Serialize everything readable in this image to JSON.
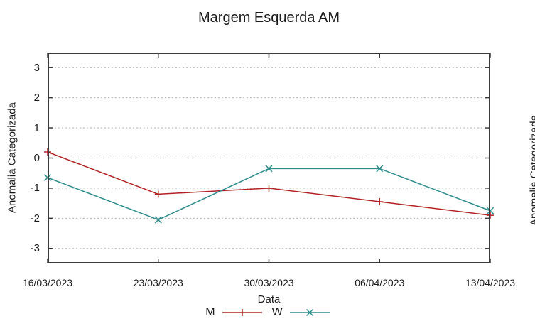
{
  "chart_data": {
    "type": "line",
    "title": "Margem Esquerda AM",
    "xlabel": "Data",
    "ylabel": "Anomalia Categorizada",
    "categories": [
      "16/03/2023",
      "23/03/2023",
      "30/03/2023",
      "06/04/2023",
      "13/04/2023"
    ],
    "series": [
      {
        "name": "M",
        "marker": "plus",
        "color": "#b22222",
        "values": [
          0.2,
          -1.2,
          -1.0,
          -1.45,
          -1.9
        ]
      },
      {
        "name": "W",
        "marker": "x",
        "color": "#2e8b8b",
        "values": [
          -0.65,
          -2.05,
          -0.35,
          -0.35,
          -1.75
        ]
      }
    ],
    "ylim": [
      -3.5,
      3.5
    ],
    "yticks": [
      3,
      2,
      1,
      0,
      -1,
      -2,
      -3
    ],
    "grid": true,
    "grid_style": "dotted",
    "legend_position": "bottom-center",
    "colors": {
      "grid": "#b0b0b0",
      "axis": "#3a3a3a",
      "text": "#1a1a1a"
    }
  },
  "adjacent_chart": {
    "ylabel": "Anomalia Categorizada"
  }
}
